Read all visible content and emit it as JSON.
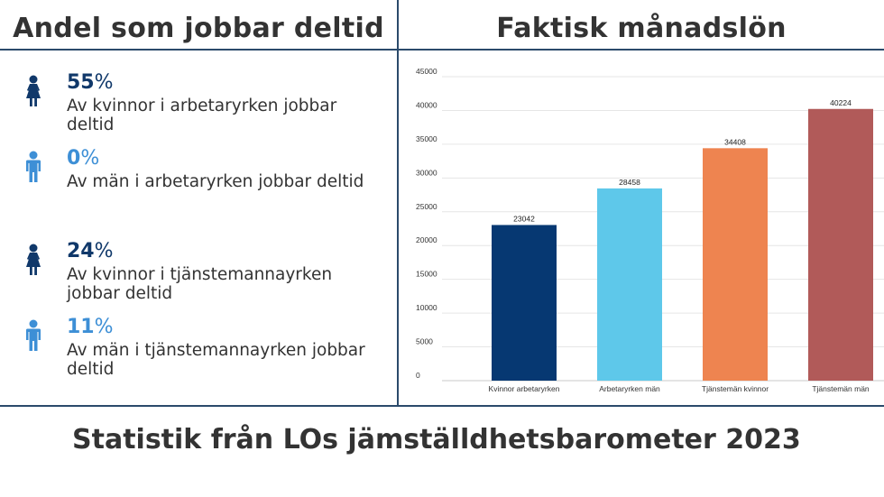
{
  "left_panel": {
    "title": "Andel som jobbar deltid",
    "stats": [
      {
        "number": "55",
        "unit": "%",
        "text": "Av kvinnor i arbetaryrken jobbar deltid",
        "icon": "woman-icon",
        "color": "#10386a"
      },
      {
        "number": "0",
        "unit": "%",
        "text": "Av män i arbetaryrken jobbar deltid",
        "icon": "man-icon",
        "color": "#3d8fd6"
      },
      {
        "number": "24",
        "unit": "%",
        "text": "Av kvinnor i tjänstemannayrken jobbar deltid",
        "icon": "woman-icon",
        "color": "#10386a"
      },
      {
        "number": "11",
        "unit": "%",
        "text": "Av män i tjänstemannayrken jobbar deltid",
        "icon": "man-icon",
        "color": "#3d8fd6"
      }
    ]
  },
  "right_panel": {
    "title": "Faktisk månadslön"
  },
  "footer": "Statistik från LOs jämställdhetsbarometer 2023",
  "chart_data": {
    "type": "bar",
    "title": "",
    "xlabel": "",
    "ylabel": "",
    "categories": [
      "Kvinnor arbetaryrken",
      "Arbetaryrken män",
      "Tjänstemän kvinnor",
      "Tjänstemän män"
    ],
    "values": [
      23042,
      28458,
      34408,
      40224
    ],
    "colors": [
      "#063872",
      "#5ec8ea",
      "#ee8450",
      "#b15a59"
    ],
    "ylim": [
      0,
      45000
    ],
    "yticks": [
      0,
      5000,
      10000,
      15000,
      20000,
      25000,
      30000,
      35000,
      40000,
      45000
    ],
    "grid": true,
    "data_labels": true
  }
}
